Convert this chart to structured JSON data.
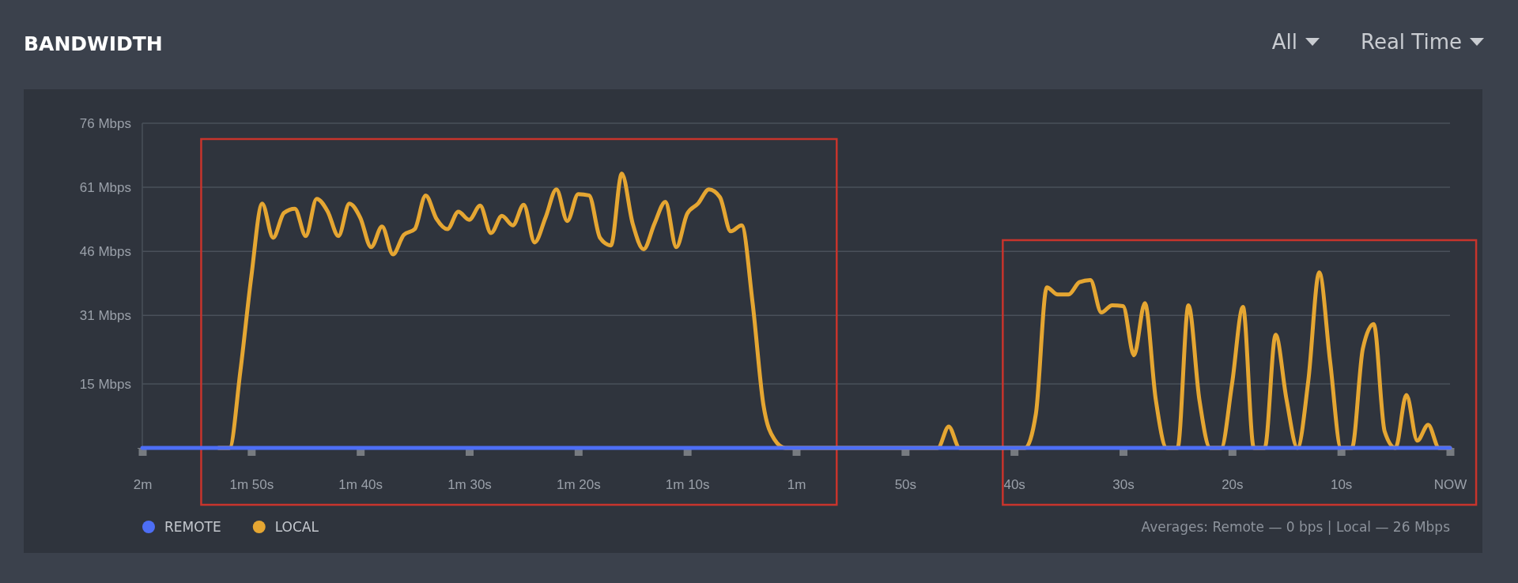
{
  "chart_data": {
    "type": "line",
    "title": "BANDWIDTH",
    "annotations": [
      "All",
      "Real Time",
      "Averages: Remote — 0 bps | Local — 26 Mbps"
    ],
    "categories": [
      "2m",
      null,
      null,
      null,
      null,
      null,
      null,
      null,
      null,
      null,
      "1m 50s",
      null,
      null,
      null,
      null,
      null,
      null,
      null,
      null,
      null,
      "1m 40s",
      null,
      null,
      null,
      null,
      null,
      null,
      null,
      null,
      null,
      "1m 30s",
      null,
      null,
      null,
      null,
      null,
      null,
      null,
      null,
      null,
      "1m 20s",
      null,
      null,
      null,
      null,
      null,
      null,
      null,
      null,
      null,
      "1m 10s",
      null,
      null,
      null,
      null,
      null,
      null,
      null,
      null,
      null,
      "1m",
      null,
      null,
      null,
      null,
      null,
      null,
      null,
      null,
      null,
      "50s",
      null,
      null,
      null,
      null,
      null,
      null,
      null,
      null,
      null,
      "40s",
      null,
      null,
      null,
      null,
      null,
      null,
      null,
      null,
      null,
      "30s",
      null,
      null,
      null,
      null,
      null,
      null,
      null,
      null,
      null,
      "20s",
      null,
      null,
      null,
      null,
      null,
      null,
      null,
      null,
      null,
      "10s",
      null,
      null,
      null,
      null,
      null,
      null,
      null,
      null,
      null,
      "NOW"
    ],
    "ylim": [
      0,
      76
    ],
    "yticks": [
      {
        "value": 0,
        "label": null
      },
      {
        "value": 15,
        "label": "15 Mbps"
      },
      {
        "value": 31,
        "label": "31 Mbps"
      },
      {
        "value": 46,
        "label": "46 Mbps"
      },
      {
        "value": 61,
        "label": "61 Mbps"
      },
      {
        "value": 76,
        "label": "76 Mbps"
      }
    ],
    "grid": "y",
    "legend": "bottom left",
    "marker": "none",
    "line_style": "solid",
    "series": [
      {
        "name": "REMOTE",
        "color": "#4d6ef5",
        "values": [
          0,
          0,
          0,
          0,
          0,
          0,
          0,
          0,
          0,
          0,
          0,
          0,
          0,
          0,
          0,
          0,
          0,
          0,
          0,
          0,
          0,
          0,
          0,
          0,
          0,
          0,
          0,
          0,
          0,
          0,
          0,
          0,
          0,
          0,
          0,
          0,
          0,
          0,
          0,
          0,
          0,
          0,
          0,
          0,
          0,
          0,
          0,
          0,
          0,
          0,
          0,
          0,
          0,
          0,
          0,
          0,
          0,
          0,
          0,
          0,
          0,
          0,
          0,
          0,
          0,
          0,
          0,
          0,
          0,
          0,
          0,
          0,
          0,
          0,
          0,
          0,
          0,
          0,
          0,
          0,
          0,
          0,
          0,
          0,
          0,
          0,
          0,
          0,
          0,
          0,
          0,
          0,
          0,
          0,
          0,
          0,
          0,
          0,
          0,
          0,
          0,
          0,
          0,
          0,
          0,
          0,
          0,
          0,
          0,
          0,
          0,
          0,
          0,
          0,
          0,
          0,
          0,
          0,
          0,
          0,
          0
        ]
      },
      {
        "name": "LOCAL",
        "color": "#e5a632",
        "values": [
          null,
          null,
          null,
          null,
          null,
          null,
          null,
          0,
          0,
          18,
          40,
          57.2,
          49.2,
          55.0,
          56.0,
          49.6,
          58.3,
          55.4,
          49.6,
          57.2,
          53.9,
          47.0,
          51.8,
          45.3,
          49.9,
          51.2,
          59.1,
          53.6,
          51.2,
          55.3,
          53.4,
          56.7,
          50.3,
          54.3,
          52.1,
          56.9,
          48.1,
          53.9,
          60.5,
          53.1,
          59.4,
          59.1,
          49.2,
          47.4,
          64.2,
          52.5,
          46.5,
          52.5,
          57.6,
          47.0,
          54.8,
          57.2,
          60.5,
          58.7,
          50.7,
          52.1,
          34,
          10,
          2,
          0,
          0,
          0,
          0,
          0,
          0,
          0,
          0,
          0,
          0,
          0,
          0,
          0,
          0,
          0,
          5.0,
          0,
          0,
          0,
          0,
          0,
          0,
          0,
          8,
          37.6,
          35.9,
          35.9,
          38.8,
          39.3,
          31.7,
          33.4,
          33.2,
          21.7,
          33.9,
          11.3,
          0,
          0,
          33.4,
          11.3,
          0,
          0,
          15,
          33.0,
          0,
          0,
          26.5,
          11.3,
          0,
          15.8,
          41.1,
          20.2,
          0,
          0,
          23.2,
          29.0,
          3.9,
          0,
          12.4,
          1.7,
          5.4,
          0,
          0
        ]
      }
    ]
  }
}
